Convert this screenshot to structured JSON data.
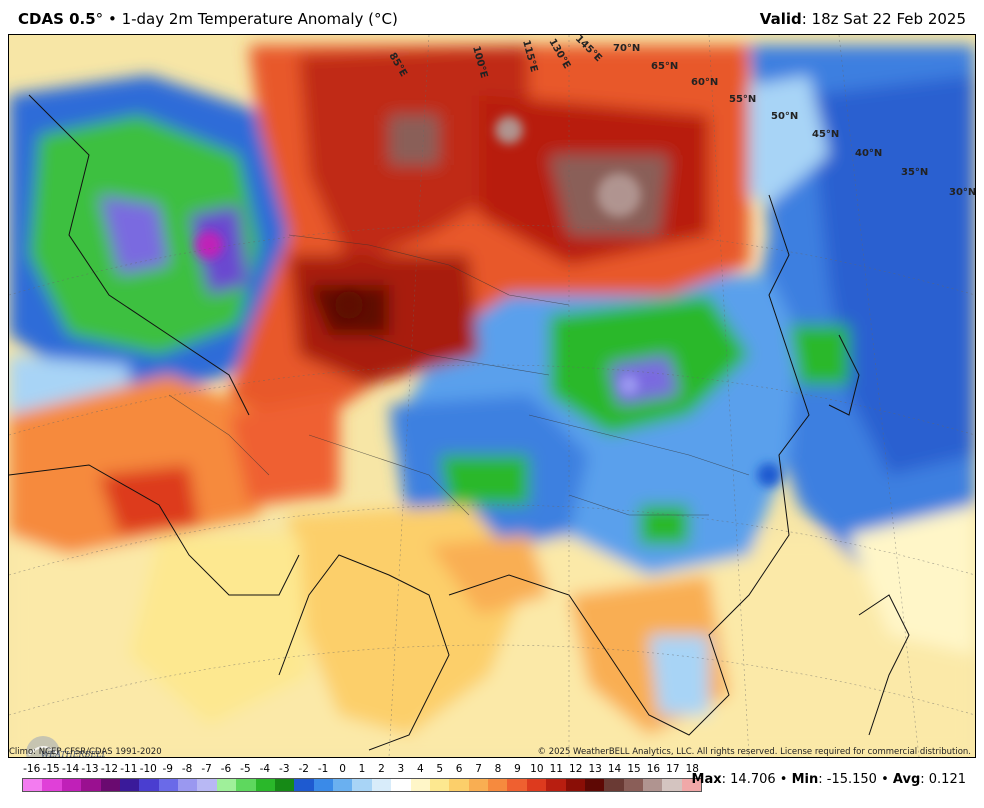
{
  "header": {
    "model": "CDAS 0.5",
    "degree": "°",
    "bullet": " • ",
    "product": "1-day 2m Temperature Anomaly (°C)",
    "valid_label": "Valid",
    "valid_time": ": 18z Sat 22 Feb 2025"
  },
  "footer": {
    "climo": "Climo: NCEP CFSR/CDAS 1991-2020",
    "copyright": "© 2025 WeatherBELL Analytics, LLC. All rights reserved. License required for commercial distribution."
  },
  "logo": {
    "text": "WEATHERBELL",
    "icon": "weatherbell-logo-icon"
  },
  "stats": {
    "max_label": "Max",
    "max_value": ": 14.706",
    "sep1": " • ",
    "min_label": "Min",
    "min_value": ": -15.150",
    "sep2": " • ",
    "avg_label": "Avg",
    "avg_value": ": 0.121"
  },
  "colorbar": {
    "ticks": [
      "-16",
      "-15",
      "-14",
      "-13",
      "-12",
      "-11",
      "-10",
      "-9",
      "-8",
      "-7",
      "-6",
      "-5",
      "-4",
      "-3",
      "-2",
      "-1",
      "0",
      "1",
      "2",
      "3",
      "4",
      "5",
      "6",
      "7",
      "8",
      "9",
      "10",
      "11",
      "12",
      "13",
      "14",
      "15",
      "16",
      "17",
      "18"
    ],
    "colors": [
      "#f37cf0",
      "#e040d8",
      "#c020b8",
      "#9a1090",
      "#6a0a70",
      "#3a1a9a",
      "#4a3ed0",
      "#6a6ae8",
      "#9a98f0",
      "#b8b8f4",
      "#9ff09a",
      "#5ed85e",
      "#2ab82a",
      "#168a16",
      "#1e5ad0",
      "#3a8ae8",
      "#6ab0f0",
      "#a8d4f6",
      "#d8ecfa",
      "#ffffff",
      "#fff6c8",
      "#fde890",
      "#fccf6a",
      "#f9ae52",
      "#f68a3e",
      "#ef6030",
      "#dd3a1e",
      "#b81e10",
      "#8a0e06",
      "#5e0804",
      "#6a3a34",
      "#8a5e58",
      "#b09490",
      "#d4c4c0",
      "#f0a8a8"
    ]
  },
  "map": {
    "lat_labels": [
      "70°N",
      "65°N",
      "60°N",
      "55°N",
      "50°N",
      "45°N",
      "40°N",
      "35°N",
      "30°N"
    ],
    "lon_labels": [
      "85°E",
      "100°E",
      "115°E",
      "130°E",
      "145°E"
    ]
  }
}
